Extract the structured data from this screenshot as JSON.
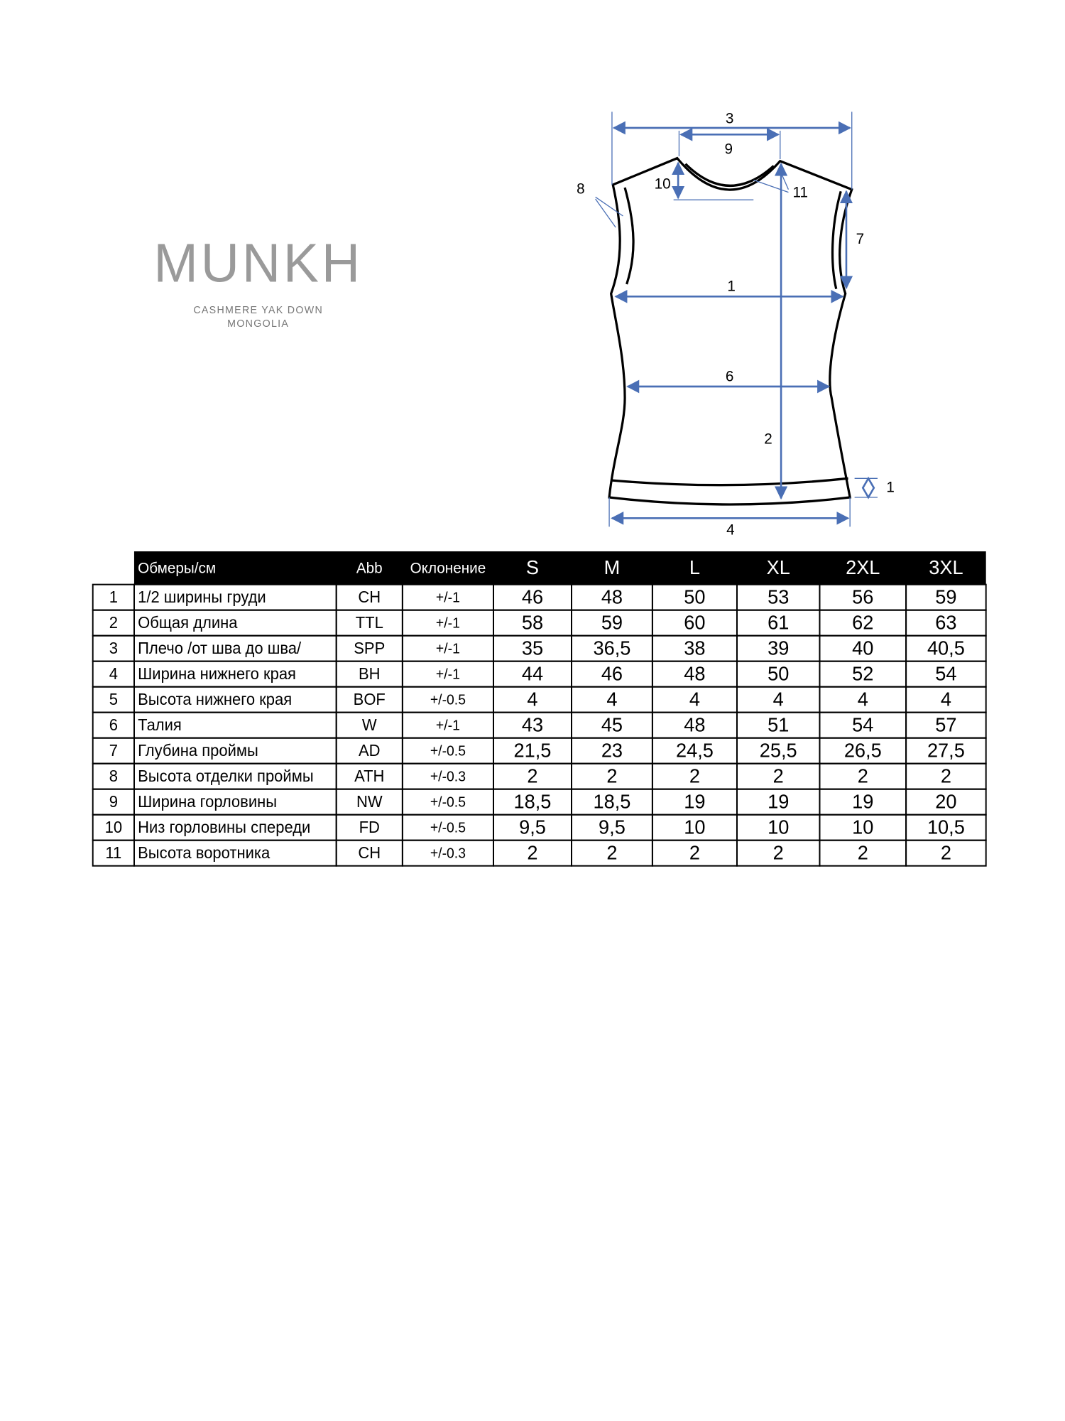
{
  "brand": {
    "name": "MUNKH",
    "tagline": [
      "CASHMERE YAK DOWN",
      "MONGOLIA"
    ]
  },
  "diagram": {
    "labels": [
      "3",
      "9",
      "10",
      "11",
      "8",
      "7",
      "1",
      "6",
      "2",
      "1",
      "4"
    ]
  },
  "table": {
    "header": [
      "Обмеры/см",
      "Abb",
      "Оклонение",
      "S",
      "M",
      "L",
      "XL",
      "2XL",
      "3XL"
    ],
    "rows": [
      [
        "1",
        "1/2 ширины груди",
        "CH",
        "+/-1",
        "46",
        "48",
        "50",
        "53",
        "56",
        "59"
      ],
      [
        "2",
        "Общая длина",
        "TTL",
        "+/-1",
        "58",
        "59",
        "60",
        "61",
        "62",
        "63"
      ],
      [
        "3",
        "Плечо /от шва до шва/",
        "SPP",
        "+/-1",
        "35",
        "36,5",
        "38",
        "39",
        "40",
        "40,5"
      ],
      [
        "4",
        "Ширина нижнего края",
        "BH",
        "+/-1",
        "44",
        "46",
        "48",
        "50",
        "52",
        "54"
      ],
      [
        "5",
        "Высота нижнего края",
        "BOF",
        "+/-0.5",
        "4",
        "4",
        "4",
        "4",
        "4",
        "4"
      ],
      [
        "6",
        "Талия",
        "W",
        "+/-1",
        "43",
        "45",
        "48",
        "51",
        "54",
        "57"
      ],
      [
        "7",
        "Глубина проймы",
        "AD",
        "+/-0.5",
        "21,5",
        "23",
        "24,5",
        "25,5",
        "26,5",
        "27,5"
      ],
      [
        "8",
        "Высота отделки проймы",
        "ATH",
        "+/-0.3",
        "2",
        "2",
        "2",
        "2",
        "2",
        "2"
      ],
      [
        "9",
        "Ширина горловины",
        "NW",
        "+/-0.5",
        "18,5",
        "18,5",
        "19",
        "19",
        "19",
        "20"
      ],
      [
        "10",
        "Низ горловины спереди",
        "FD",
        "+/-0.5",
        "9,5",
        "9,5",
        "10",
        "10",
        "10",
        "10,5"
      ],
      [
        "11",
        "Высота воротника",
        "CH",
        "+/-0.3",
        "2",
        "2",
        "2",
        "2",
        "2",
        "2"
      ]
    ]
  }
}
